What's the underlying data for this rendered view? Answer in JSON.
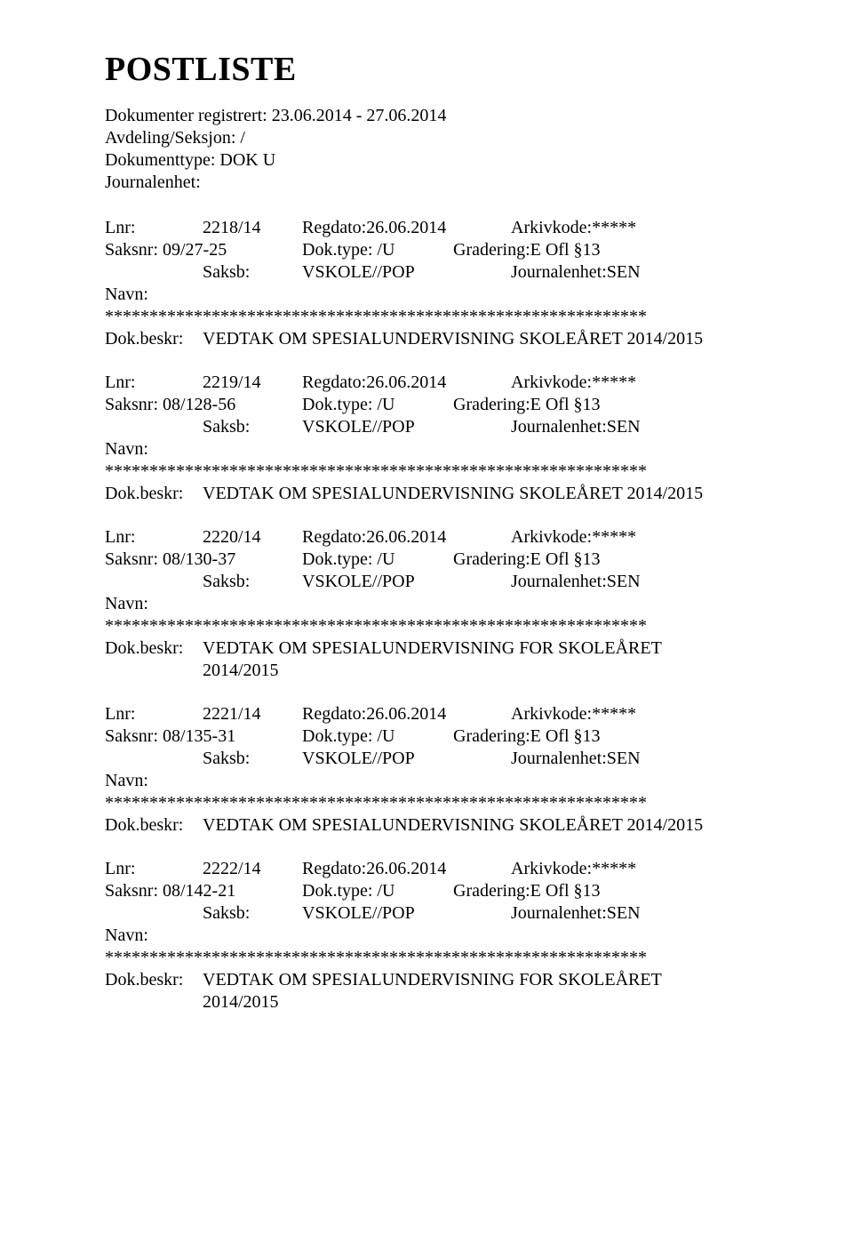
{
  "title": "POSTLISTE",
  "meta": {
    "line1": "Dokumenter registrert: 23.06.2014 - 27.06.2014",
    "line2": "Avdeling/Seksjon: /",
    "line3": "Dokumenttype: DOK U",
    "line4": "Journalenhet:"
  },
  "labels": {
    "lnr": "Lnr:",
    "regdato": "Regdato:",
    "arkivkode": "Arkivkode:",
    "saksnr": "Saksnr:",
    "doktype": "Dok.type:",
    "gradering": "Gradering:",
    "saksb": "Saksb:",
    "journalenhet": "Journalenhet:",
    "navn": "Navn:",
    "dokbeskr": "Dok.beskr:"
  },
  "shared": {
    "regdato": "26.06.2014",
    "arkivkode": "*****",
    "doktype": "/U",
    "gradering": "E Ofl §13",
    "saksb": "VSKOLE//POP",
    "journalenhet_val": "SEN",
    "stars": "*************************************************************"
  },
  "entries": [
    {
      "lnr": "2218/14",
      "saksnr": "09/27-25",
      "beskr": "VEDTAK OM SPESIALUNDERVISNING SKOLEÅRET 2014/2015",
      "beskr2": null
    },
    {
      "lnr": "2219/14",
      "saksnr": "08/128-56",
      "beskr": "VEDTAK OM SPESIALUNDERVISNING SKOLEÅRET 2014/2015",
      "beskr2": null
    },
    {
      "lnr": "2220/14",
      "saksnr": "08/130-37",
      "beskr": "VEDTAK OM SPESIALUNDERVISNING FOR SKOLEÅRET",
      "beskr2": "2014/2015"
    },
    {
      "lnr": "2221/14",
      "saksnr": "08/135-31",
      "beskr": "VEDTAK OM SPESIALUNDERVISNING SKOLEÅRET 2014/2015",
      "beskr2": null
    },
    {
      "lnr": "2222/14",
      "saksnr": "08/142-21",
      "beskr": "VEDTAK OM SPESIALUNDERVISNING FOR SKOLEÅRET",
      "beskr2": "2014/2015"
    }
  ]
}
